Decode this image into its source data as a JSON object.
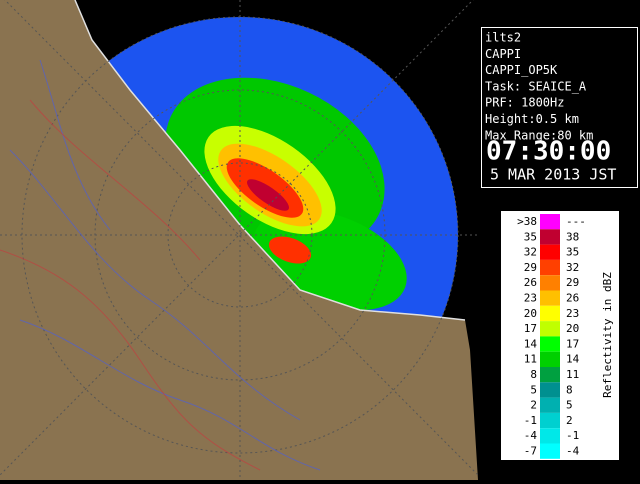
{
  "info": {
    "lines": [
      "ilts2",
      "CAPPI",
      "CAPPI_OP5K",
      "Task: SEAICE_A",
      "PRF: 1800Hz",
      "Height:0.5 km",
      "Max Range:80 km"
    ],
    "time": "07:30:00",
    "date": "5 MAR 2013 JST"
  },
  "legend": {
    "label": "Reflectivity in dBZ",
    "rows": [
      {
        "low": ">38",
        "high": "---",
        "color": "#ff00ff"
      },
      {
        "low": "35",
        "high": "38",
        "color": "#c00030"
      },
      {
        "low": "32",
        "high": "35",
        "color": "#ff0000"
      },
      {
        "low": "29",
        "high": "32",
        "color": "#ff4000"
      },
      {
        "low": "26",
        "high": "29",
        "color": "#ff8000"
      },
      {
        "low": "23",
        "high": "26",
        "color": "#ffc000"
      },
      {
        "low": "20",
        "high": "23",
        "color": "#ffff00"
      },
      {
        "low": "17",
        "high": "20",
        "color": "#c0ff00"
      },
      {
        "low": "14",
        "high": "17",
        "color": "#00ff00"
      },
      {
        "low": "11",
        "high": "14",
        "color": "#00d000"
      },
      {
        "low": "8",
        "high": "11",
        "color": "#00a040"
      },
      {
        "low": "5",
        "high": "8",
        "color": "#009090"
      },
      {
        "low": "2",
        "high": "5",
        "color": "#00b0b0"
      },
      {
        "low": "-1",
        "high": "2",
        "color": "#00d0d0"
      },
      {
        "low": "-4",
        "high": "-1",
        "color": "#00e8e8"
      },
      {
        "low": "-7",
        "high": "-4",
        "color": "#00ffff"
      }
    ]
  }
}
